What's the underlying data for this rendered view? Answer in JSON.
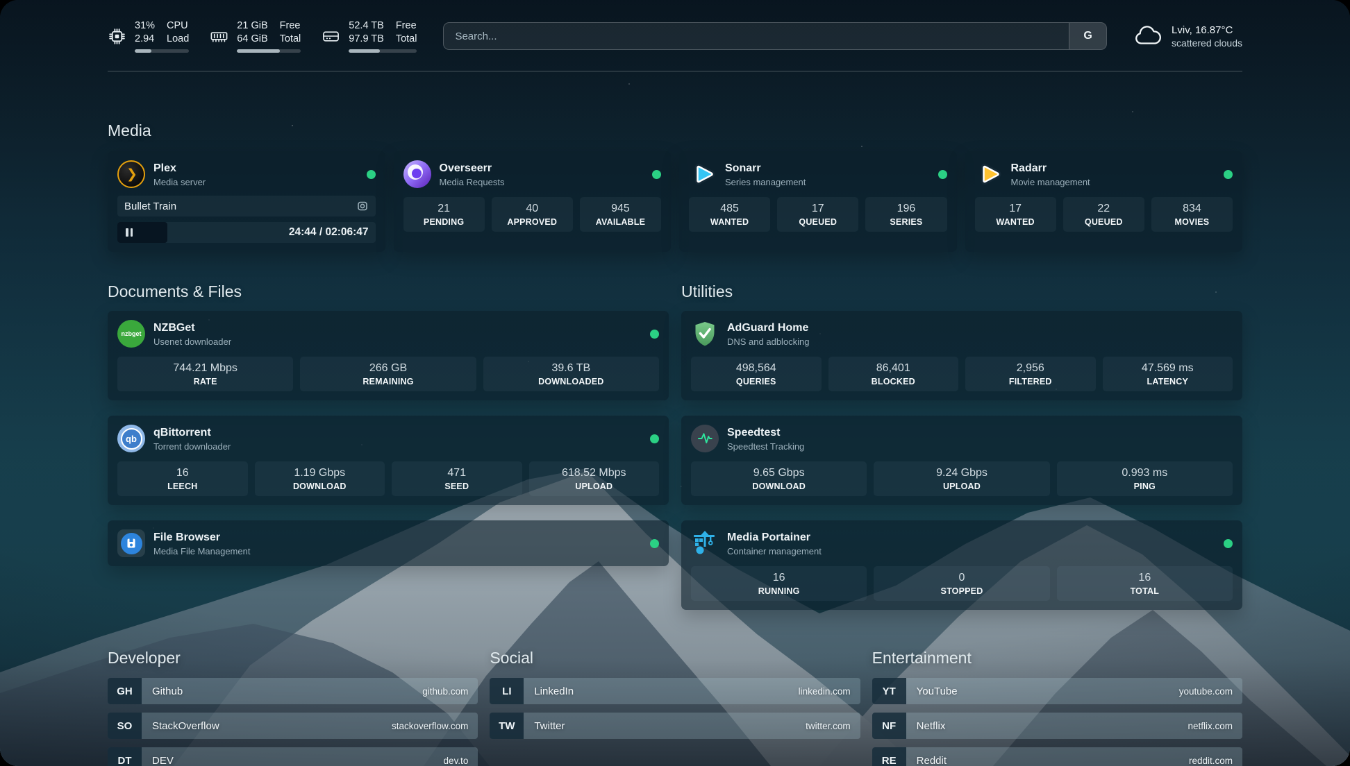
{
  "header": {
    "cpu": {
      "value_top": "31%",
      "value_bottom": "2.94",
      "label_top": "CPU",
      "label_bottom": "Load",
      "progress_percent": 31
    },
    "ram": {
      "value_top": "21 GiB",
      "value_bottom": "64 GiB",
      "label_top": "Free",
      "label_bottom": "Total",
      "progress_percent": 67
    },
    "disk": {
      "value_top": "52.4 TB",
      "value_bottom": "97.9 TB",
      "label_top": "Free",
      "label_bottom": "Total",
      "progress_percent": 46
    },
    "search": {
      "placeholder": "Search...",
      "engine_button": "G"
    },
    "weather": {
      "location": "Lviv, 16.87°C",
      "condition": "scattered clouds"
    }
  },
  "sections": {
    "media": "Media",
    "documents": "Documents & Files",
    "utilities": "Utilities",
    "developer": "Developer",
    "social": "Social",
    "entertainment": "Entertainment"
  },
  "apps": {
    "plex": {
      "name": "Plex",
      "subtitle": "Media server",
      "now_playing": "Bullet Train",
      "time_display": "24:44 / 02:06:47",
      "progress_percent": 19.5
    },
    "overseerr": {
      "name": "Overseerr",
      "subtitle": "Media Requests",
      "stats": [
        {
          "value": "21",
          "label": "PENDING"
        },
        {
          "value": "40",
          "label": "APPROVED"
        },
        {
          "value": "945",
          "label": "AVAILABLE"
        }
      ]
    },
    "sonarr": {
      "name": "Sonarr",
      "subtitle": "Series management",
      "stats": [
        {
          "value": "485",
          "label": "WANTED"
        },
        {
          "value": "17",
          "label": "QUEUED"
        },
        {
          "value": "196",
          "label": "SERIES"
        }
      ]
    },
    "radarr": {
      "name": "Radarr",
      "subtitle": "Movie management",
      "stats": [
        {
          "value": "17",
          "label": "WANTED"
        },
        {
          "value": "22",
          "label": "QUEUED"
        },
        {
          "value": "834",
          "label": "MOVIES"
        }
      ]
    },
    "nzbget": {
      "name": "NZBGet",
      "subtitle": "Usenet downloader",
      "icon_text": "nzbget",
      "stats": [
        {
          "value": "744.21 Mbps",
          "label": "RATE"
        },
        {
          "value": "266 GB",
          "label": "REMAINING"
        },
        {
          "value": "39.6 TB",
          "label": "DOWNLOADED"
        }
      ]
    },
    "adguard": {
      "name": "AdGuard Home",
      "subtitle": "DNS and adblocking",
      "stats": [
        {
          "value": "498,564",
          "label": "QUERIES"
        },
        {
          "value": "86,401",
          "label": "BLOCKED"
        },
        {
          "value": "2,956",
          "label": "FILTERED"
        },
        {
          "value": "47.569 ms",
          "label": "LATENCY"
        }
      ]
    },
    "qbittorrent": {
      "name": "qBittorrent",
      "subtitle": "Torrent downloader",
      "icon_text": "qb",
      "stats": [
        {
          "value": "16",
          "label": "LEECH"
        },
        {
          "value": "1.19 Gbps",
          "label": "DOWNLOAD"
        },
        {
          "value": "471",
          "label": "SEED"
        },
        {
          "value": "618.52 Mbps",
          "label": "UPLOAD"
        }
      ]
    },
    "speedtest": {
      "name": "Speedtest",
      "subtitle": "Speedtest Tracking",
      "stats": [
        {
          "value": "9.65 Gbps",
          "label": "DOWNLOAD"
        },
        {
          "value": "9.24 Gbps",
          "label": "UPLOAD"
        },
        {
          "value": "0.993 ms",
          "label": "PING"
        }
      ]
    },
    "filebrowser": {
      "name": "File Browser",
      "subtitle": "Media File Management"
    },
    "portainer": {
      "name": "Media Portainer",
      "subtitle": "Container management",
      "stats": [
        {
          "value": "16",
          "label": "RUNNING"
        },
        {
          "value": "0",
          "label": "STOPPED"
        },
        {
          "value": "16",
          "label": "TOTAL"
        }
      ]
    }
  },
  "links": {
    "developer": {
      "items": [
        {
          "badge": "GH",
          "name": "Github",
          "url": "github.com"
        },
        {
          "badge": "SO",
          "name": "StackOverflow",
          "url": "stackoverflow.com"
        },
        {
          "badge": "DT",
          "name": "DEV",
          "url": "dev.to"
        }
      ]
    },
    "social": {
      "items": [
        {
          "badge": "LI",
          "name": "LinkedIn",
          "url": "linkedin.com"
        },
        {
          "badge": "TW",
          "name": "Twitter",
          "url": "twitter.com"
        }
      ]
    },
    "entertainment": {
      "items": [
        {
          "badge": "YT",
          "name": "YouTube",
          "url": "youtube.com"
        },
        {
          "badge": "NF",
          "name": "Netflix",
          "url": "netflix.com"
        },
        {
          "badge": "RE",
          "name": "Reddit",
          "url": "reddit.com"
        }
      ]
    }
  },
  "colors": {
    "status_online": "#2bd084",
    "plex_amber": "#e5a00d",
    "sonarr_cyan": "#35c5f4",
    "radarr_amber": "#ffc230",
    "nzbget_green": "#3aa83c",
    "adguard_green": "#5fae6e",
    "qbittorrent_blue": "#3e7ecb",
    "qbittorrent_light": "#8fb8e8",
    "portainer_blue": "#2fb1e8",
    "speedtest_pulse": "#2ee59d",
    "filebrowser_blue": "#2d84dd",
    "progress_fill": "#a9b6bd"
  }
}
